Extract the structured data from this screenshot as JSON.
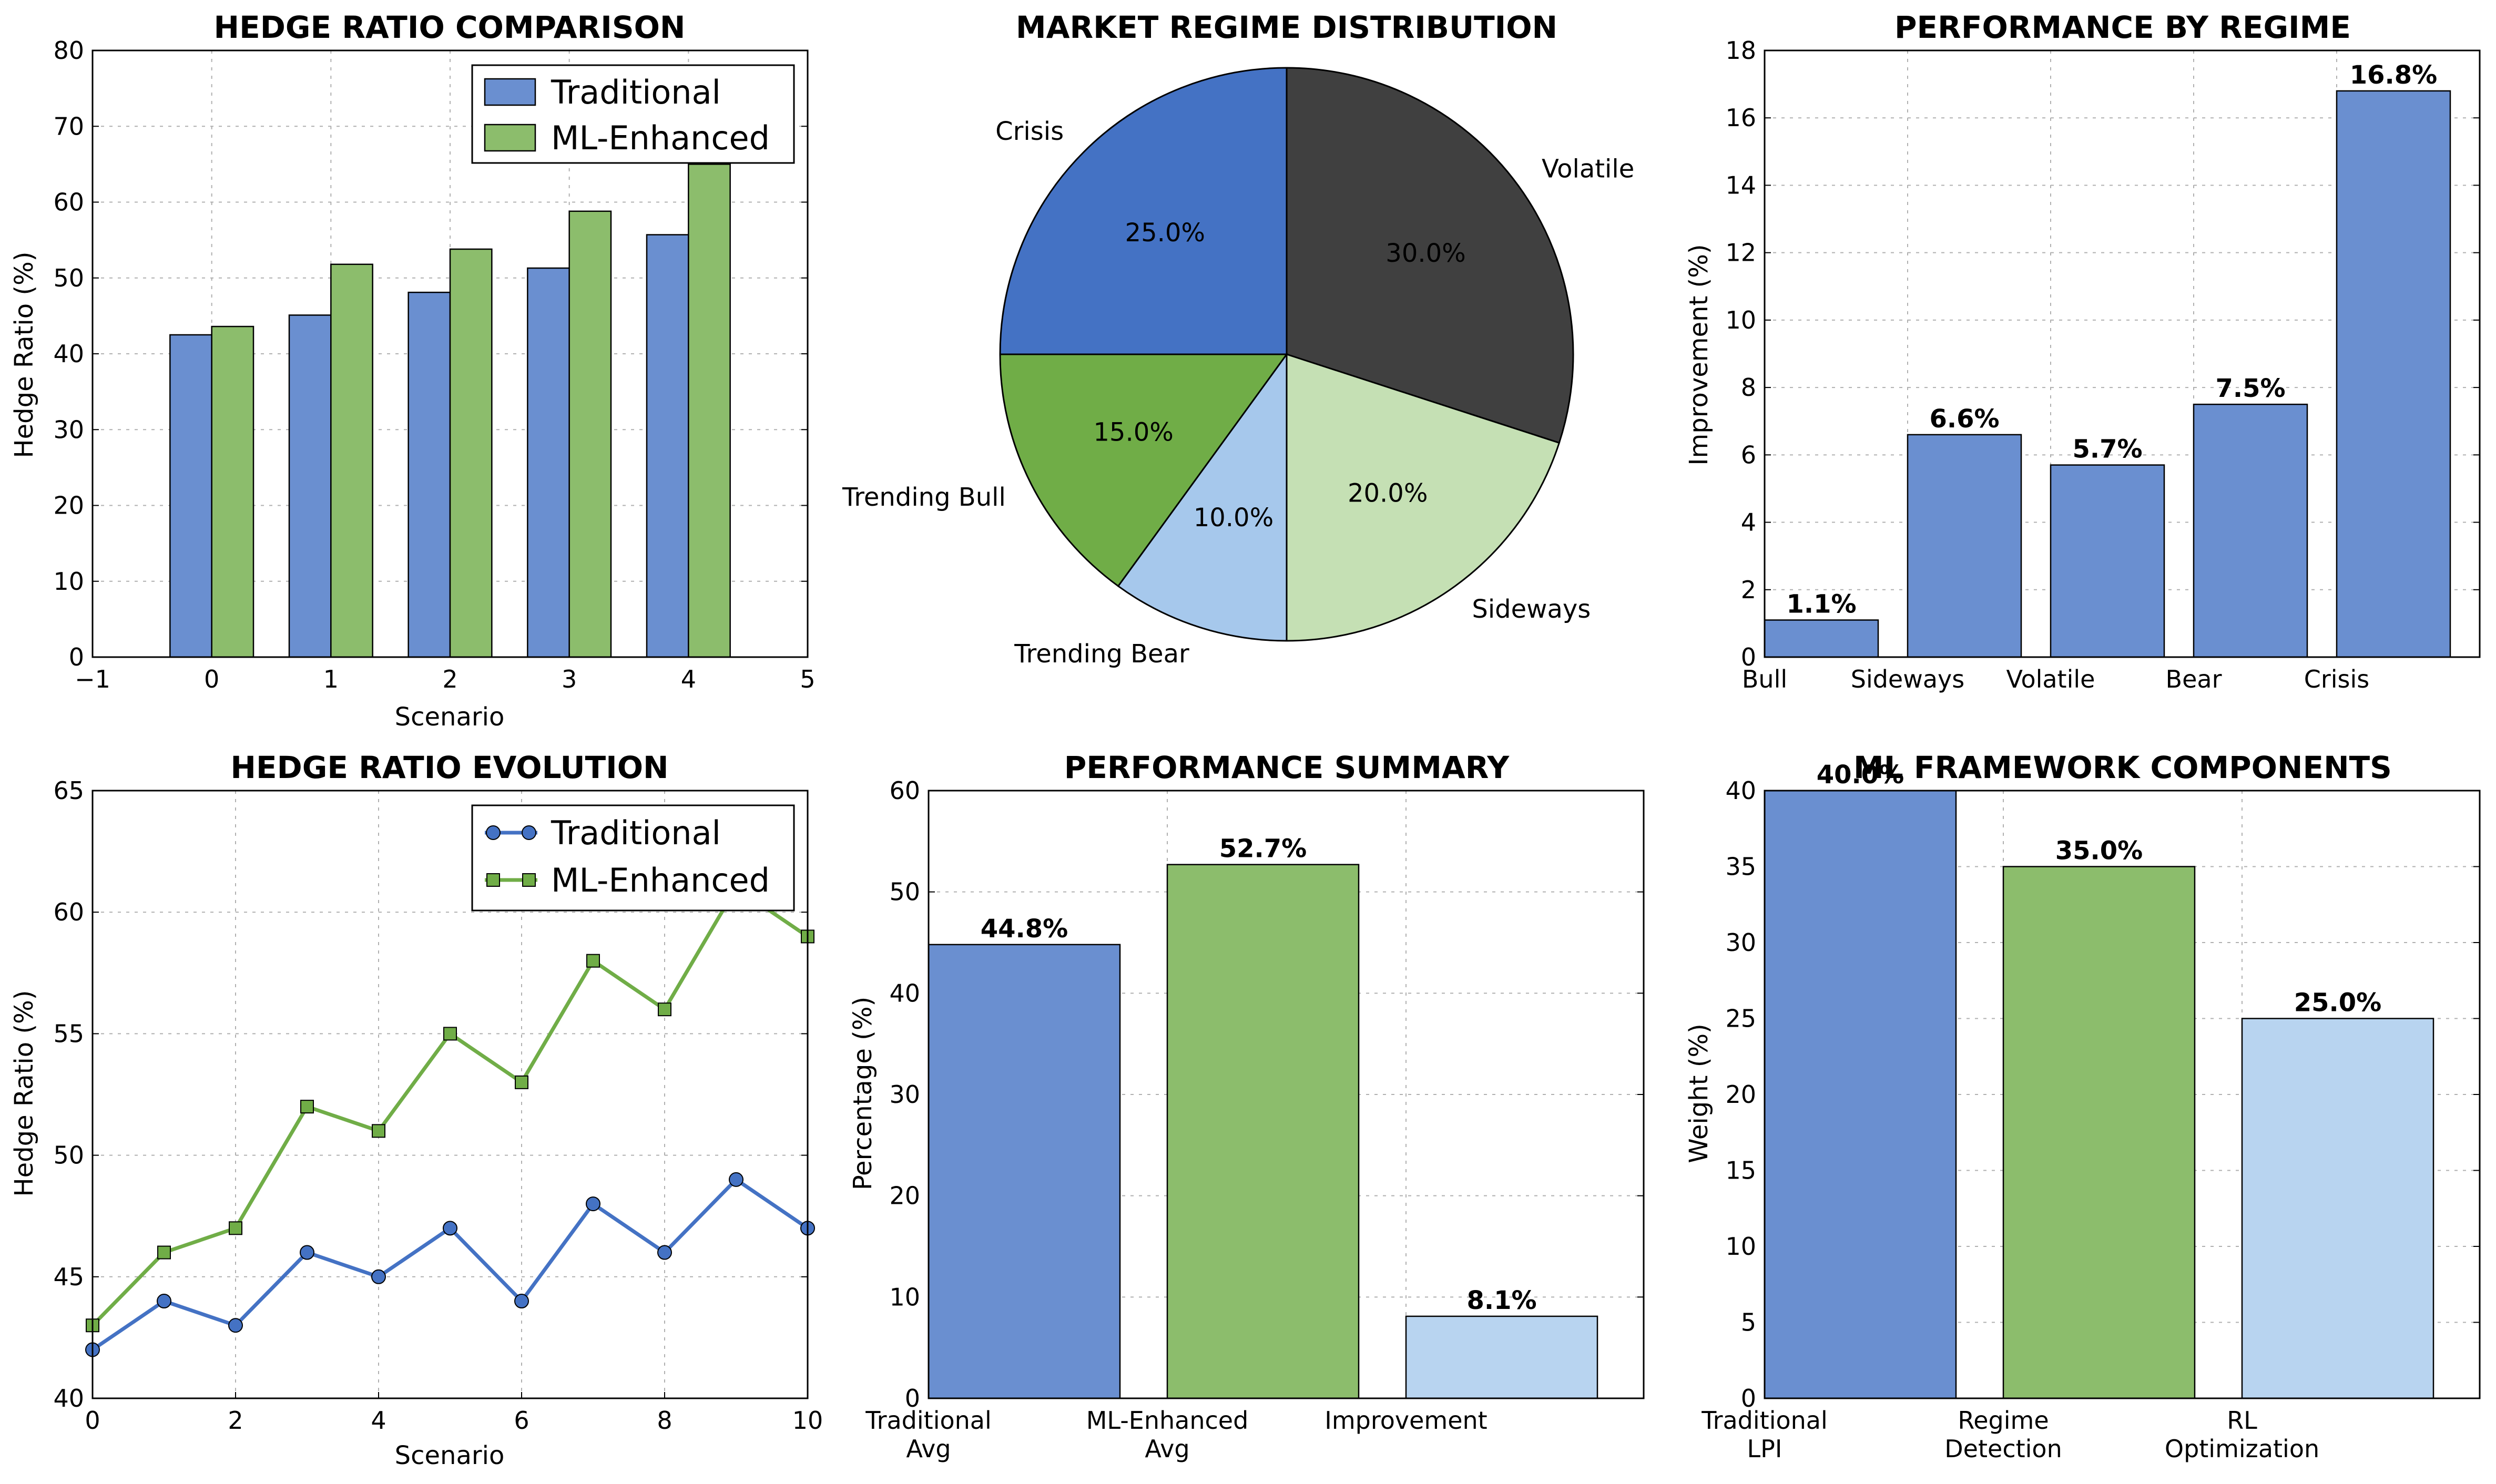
{
  "chart_data": [
    {
      "id": "hedge_ratio_comparison",
      "type": "bar",
      "title": "HEDGE RATIO COMPARISON",
      "xlabel": "Scenario",
      "ylabel": "Hedge Ratio (%)",
      "xlim": [
        -1,
        5
      ],
      "ylim": [
        0,
        80
      ],
      "xticks": [
        "−1",
        "0",
        "1",
        "2",
        "3",
        "4",
        "5"
      ],
      "yticks": [
        "0",
        "10",
        "20",
        "30",
        "40",
        "50",
        "60",
        "70",
        "80"
      ],
      "categories": [
        0,
        1,
        2,
        3,
        4
      ],
      "series": [
        {
          "name": "Traditional",
          "color": "#6A8FD0",
          "values": [
            42.5,
            45.1,
            48.1,
            51.3,
            55.7
          ]
        },
        {
          "name": "ML-Enhanced",
          "color": "#8CBD6C",
          "values": [
            43.6,
            51.8,
            53.8,
            58.8,
            65.0
          ]
        }
      ],
      "grid": true,
      "legend": "top-right"
    },
    {
      "id": "market_regime_distribution",
      "type": "pie",
      "title": "MARKET REGIME DISTRIBUTION",
      "labels": [
        "Volatile",
        "Sideways",
        "Trending Bear",
        "Trending Bull",
        "Crisis"
      ],
      "values": [
        30.0,
        20.0,
        10.0,
        15.0,
        25.0
      ],
      "pct_labels": [
        "30.0%",
        "20.0%",
        "10.0%",
        "15.0%",
        "25.0%"
      ],
      "colors": [
        "#404040",
        "#C5E0B4",
        "#A6C8EC",
        "#70AD47",
        "#4472C4"
      ]
    },
    {
      "id": "performance_by_regime",
      "type": "bar",
      "title": "PERFORMANCE BY REGIME",
      "ylabel": "Improvement (%)",
      "ylim": [
        0,
        18
      ],
      "yticks": [
        "0",
        "2",
        "4",
        "6",
        "8",
        "10",
        "12",
        "14",
        "16",
        "18"
      ],
      "categories": [
        "Bull",
        "Sideways",
        "Volatile",
        "Bear",
        "Crisis"
      ],
      "values": [
        1.1,
        6.6,
        5.7,
        7.5,
        16.8
      ],
      "value_labels": [
        "1.1%",
        "6.6%",
        "5.7%",
        "7.5%",
        "16.8%"
      ],
      "color": "#6A8FD0",
      "grid": true
    },
    {
      "id": "hedge_ratio_evolution",
      "type": "line",
      "title": "HEDGE RATIO EVOLUTION",
      "xlabel": "Scenario",
      "ylabel": "Hedge Ratio (%)",
      "xlim": [
        0,
        10
      ],
      "ylim": [
        40,
        65
      ],
      "xticks": [
        "0",
        "2",
        "4",
        "6",
        "8",
        "10"
      ],
      "yticks": [
        "40",
        "45",
        "50",
        "55",
        "60",
        "65"
      ],
      "x": [
        0,
        1,
        2,
        3,
        4,
        5,
        6,
        7,
        8,
        9,
        10
      ],
      "series": [
        {
          "name": "Traditional",
          "color": "#4472C4",
          "marker": "circle",
          "values": [
            42,
            44,
            43,
            46,
            45,
            47,
            44,
            48,
            46,
            49,
            47
          ]
        },
        {
          "name": "ML-Enhanced",
          "color": "#70AD47",
          "marker": "square",
          "values": [
            43,
            46,
            47,
            52,
            51,
            55,
            53,
            58,
            56,
            61,
            59
          ]
        }
      ],
      "grid": true,
      "legend": "top-right"
    },
    {
      "id": "performance_summary",
      "type": "bar",
      "title": "PERFORMANCE SUMMARY",
      "ylabel": "Percentage (%)",
      "ylim": [
        0,
        60
      ],
      "yticks": [
        "0",
        "10",
        "20",
        "30",
        "40",
        "50",
        "60"
      ],
      "categories": [
        [
          "Traditional",
          "Avg"
        ],
        [
          "ML-Enhanced",
          "Avg"
        ],
        [
          "Improvement"
        ]
      ],
      "values": [
        44.8,
        52.7,
        8.1
      ],
      "value_labels": [
        "44.8%",
        "52.7%",
        "8.1%"
      ],
      "colors": [
        "#6A8FD0",
        "#8CBD6C",
        "#B8D4F0"
      ],
      "grid": true
    },
    {
      "id": "ml_framework_components",
      "type": "bar",
      "title": "ML FRAMEWORK COMPONENTS",
      "ylabel": "Weight (%)",
      "ylim": [
        0,
        40
      ],
      "yticks": [
        "0",
        "5",
        "10",
        "15",
        "20",
        "25",
        "30",
        "35",
        "40"
      ],
      "categories": [
        [
          "Traditional",
          "LPI"
        ],
        [
          "Regime",
          "Detection"
        ],
        [
          "RL",
          "Optimization"
        ]
      ],
      "values": [
        40.0,
        35.0,
        25.0
      ],
      "value_labels": [
        "40.0%",
        "35.0%",
        "25.0%"
      ],
      "colors": [
        "#6A8FD0",
        "#8CBD6C",
        "#B8D4F0"
      ],
      "grid": true
    }
  ]
}
